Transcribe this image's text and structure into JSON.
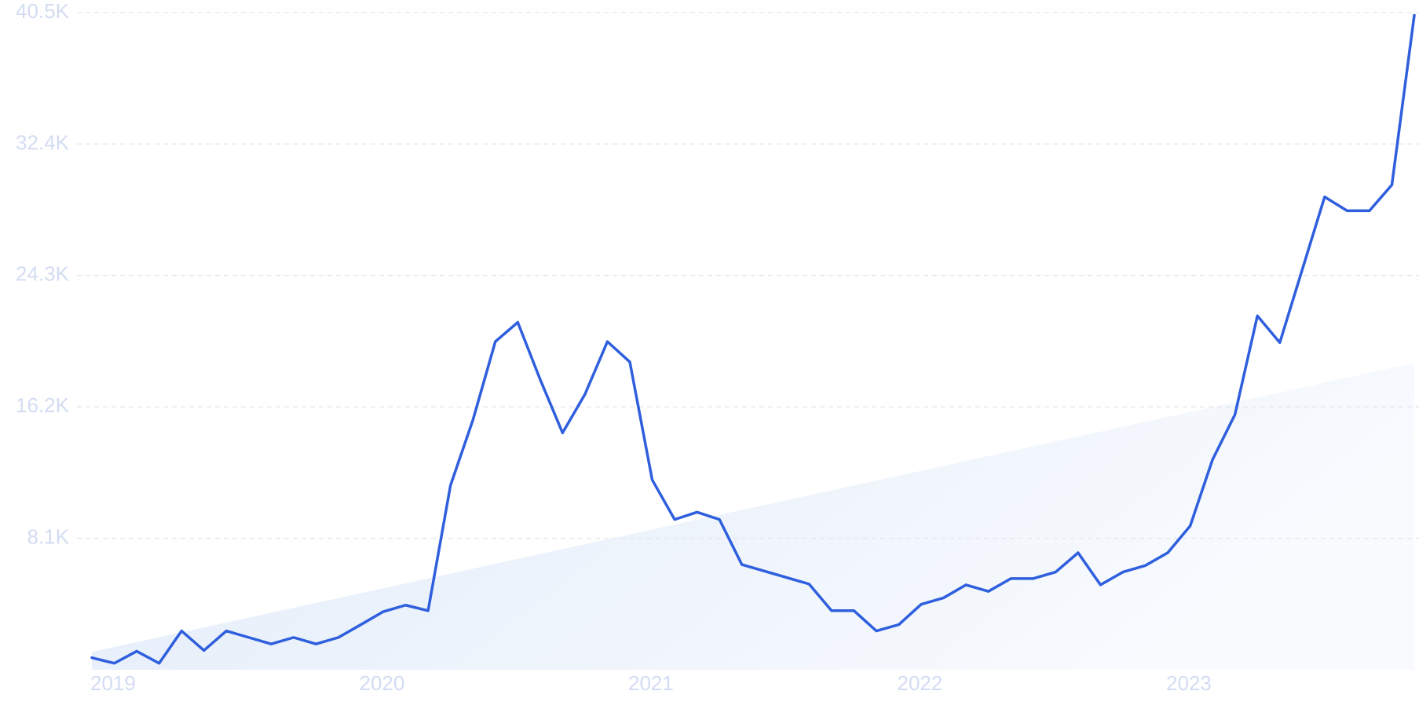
{
  "chart_data": {
    "type": "line",
    "categories": [
      "2019",
      null,
      null,
      null,
      null,
      null,
      null,
      null,
      null,
      null,
      null,
      null,
      "2020",
      null,
      null,
      null,
      null,
      null,
      null,
      null,
      null,
      null,
      null,
      null,
      "2021",
      null,
      null,
      null,
      null,
      null,
      null,
      null,
      null,
      null,
      null,
      null,
      "2022",
      null,
      null,
      null,
      null,
      null,
      null,
      null,
      null,
      null,
      null,
      null,
      "2023",
      null,
      null,
      null,
      null,
      null,
      null,
      null,
      null,
      null,
      null,
      null
    ],
    "series": [
      {
        "color": "#2f5fdd",
        "values": [
          740,
          400,
          1140,
          400,
          2390,
          1190,
          2390,
          1990,
          1590,
          1990,
          1590,
          1990,
          2780,
          3580,
          3980,
          3640,
          11360,
          15390,
          20220,
          21410,
          17890,
          14600,
          16980,
          20220,
          18970,
          11700,
          9260,
          9710,
          9260,
          6480,
          6080,
          5680,
          5280,
          3640,
          3640,
          2390,
          2780,
          4030,
          4430,
          5230,
          4830,
          5620,
          5620,
          6020,
          7210,
          5230,
          6020,
          6420,
          7210,
          8860,
          12950,
          15730,
          21810,
          20160,
          24650,
          29140,
          28290,
          28290,
          29880,
          40330
        ]
      }
    ],
    "trend": {
      "color": "#e2ecfa",
      "values": [
        1100,
        18900
      ]
    },
    "ylim": [
      0,
      40500
    ],
    "yticks": [
      {
        "value": 8100,
        "label": "8.1K"
      },
      {
        "value": 16200,
        "label": "16.2K"
      },
      {
        "value": 24300,
        "label": "24.3K"
      },
      {
        "value": 32400,
        "label": "32.4K"
      },
      {
        "value": 40500,
        "label": "40.5K"
      }
    ],
    "grid": true
  }
}
